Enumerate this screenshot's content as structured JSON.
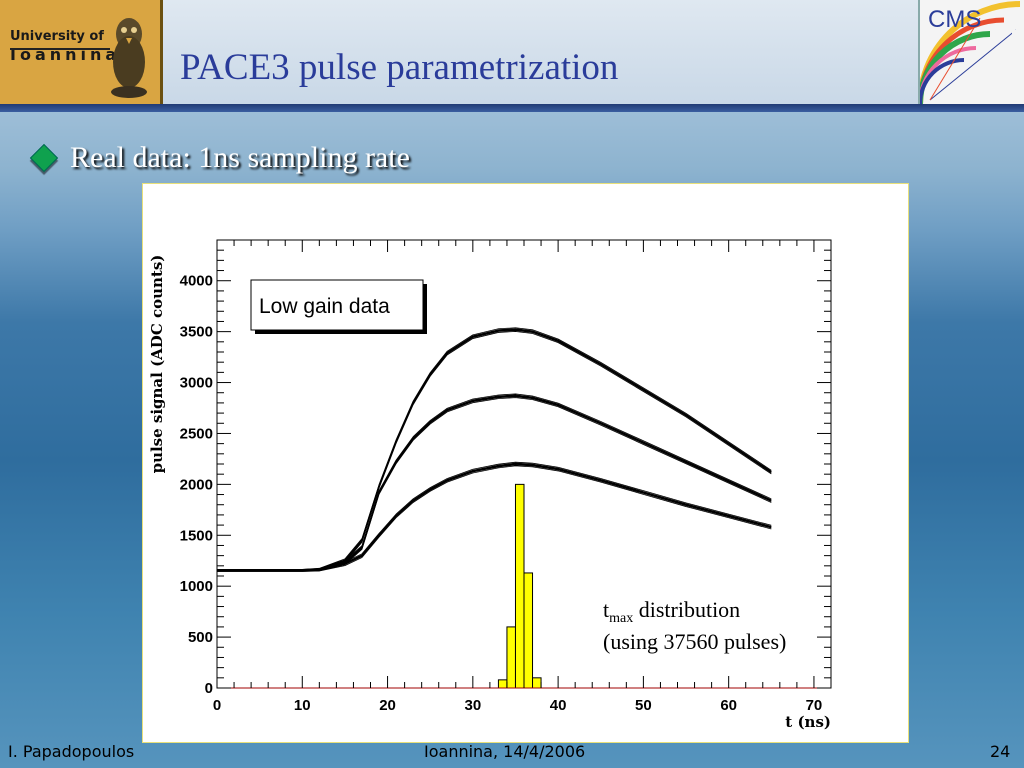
{
  "header": {
    "title": "PACE3 pulse parametrization",
    "logo_left": {
      "line1": "University of",
      "line2": "Ioannina"
    },
    "logo_right": {
      "text": "CMS"
    }
  },
  "bullet": {
    "text": "Real data: 1ns sampling rate"
  },
  "chart_data": {
    "type": "line",
    "title": "",
    "xlabel": "t (ns)",
    "ylabel": "pulse signal (ADC counts)",
    "xlim": [
      0,
      72
    ],
    "ylim": [
      0,
      4400
    ],
    "xticks": [
      0,
      10,
      20,
      30,
      40,
      50,
      60,
      70
    ],
    "yticks": [
      0,
      500,
      1000,
      1500,
      2000,
      2500,
      3000,
      3500,
      4000
    ],
    "grid": false,
    "legend_box": "Low gain data",
    "annotation": {
      "sym": "t",
      "sub": "max",
      "line1_rest": " distribution",
      "line2": "(using 37560 pulses)"
    },
    "series": [
      {
        "x": [
          0,
          5,
          10,
          12,
          15,
          17,
          19,
          21,
          23,
          25,
          27,
          30,
          33,
          35,
          37,
          40,
          45,
          50,
          55,
          60,
          65
        ],
        "y": [
          1160,
          1160,
          1160,
          1170,
          1250,
          1450,
          1980,
          2420,
          2800,
          3080,
          3290,
          3450,
          3510,
          3520,
          3500,
          3410,
          3180,
          2930,
          2680,
          2400,
          2120
        ]
      },
      {
        "x": [
          0,
          5,
          10,
          12,
          15,
          17,
          19,
          21,
          23,
          25,
          27,
          30,
          33,
          35,
          37,
          40,
          45,
          50,
          55,
          60,
          65
        ],
        "y": [
          1160,
          1160,
          1160,
          1165,
          1230,
          1380,
          1920,
          2220,
          2450,
          2610,
          2730,
          2820,
          2860,
          2870,
          2850,
          2780,
          2600,
          2410,
          2220,
          2030,
          1840
        ]
      },
      {
        "x": [
          0,
          5,
          10,
          12,
          15,
          17,
          19,
          21,
          23,
          25,
          27,
          30,
          33,
          35,
          37,
          40,
          45,
          50,
          55,
          60,
          65
        ],
        "y": [
          1150,
          1150,
          1150,
          1155,
          1220,
          1300,
          1500,
          1690,
          1840,
          1950,
          2040,
          2130,
          2180,
          2200,
          2190,
          2150,
          2040,
          1920,
          1800,
          1690,
          1580
        ]
      }
    ],
    "histogram": {
      "color": "#ffff00",
      "bins": [
        {
          "x0": 33,
          "x1": 34,
          "value": 80
        },
        {
          "x0": 34,
          "x1": 35,
          "value": 600
        },
        {
          "x0": 35,
          "x1": 36,
          "value": 2000
        },
        {
          "x0": 36,
          "x1": 37,
          "value": 1130
        },
        {
          "x0": 37,
          "x1": 38,
          "value": 100
        }
      ]
    }
  },
  "footer": {
    "author": "I. Papadopoulos",
    "place_date": "Ioannina, 14/4/2006",
    "page": "24"
  }
}
